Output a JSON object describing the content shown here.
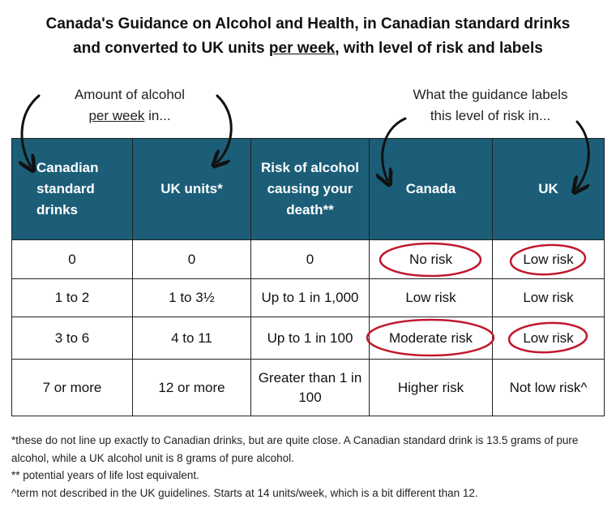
{
  "header": {
    "title_line1": "Canada's Guidance on Alcohol and Health, in Canadian standard drinks",
    "title_line2": [
      "and converted to UK units ",
      "per week",
      ", with level of risk and labels"
    ]
  },
  "annotations": {
    "left": [
      "Amount of alcohol",
      "per week",
      " in..."
    ],
    "right": [
      "What the guidance labels",
      "this level of risk in..."
    ]
  },
  "table": {
    "columns": [
      "Canadian standard drinks",
      "UK units*",
      "Risk of alcohol causing your death**",
      "Canada",
      "UK"
    ],
    "rows": [
      [
        "0",
        "0",
        "0",
        "No risk",
        "Low risk"
      ],
      [
        "1 to 2",
        "1 to 3½",
        "Up to 1 in 1,000",
        "Low risk",
        "Low risk"
      ],
      [
        "3 to 6",
        "4 to 11",
        "Up to 1 in 100",
        "Moderate risk",
        "Low risk"
      ],
      [
        "7 or more",
        "12 or more",
        "Greater than 1 in 100",
        "Higher risk",
        "Not low risk^"
      ]
    ]
  },
  "footnotes": [
    "*these do not line up exactly to Canadian drinks, but are quite close. A Canadian standard drink is 13.5 grams of pure alcohol, while a UK alcohol unit is 8 grams of pure alcohol.",
    "** potential years of life lost equivalent.",
    "^term not described in the UK guidelines. Starts at 14 units/week, which is a bit different than 12."
  ]
}
